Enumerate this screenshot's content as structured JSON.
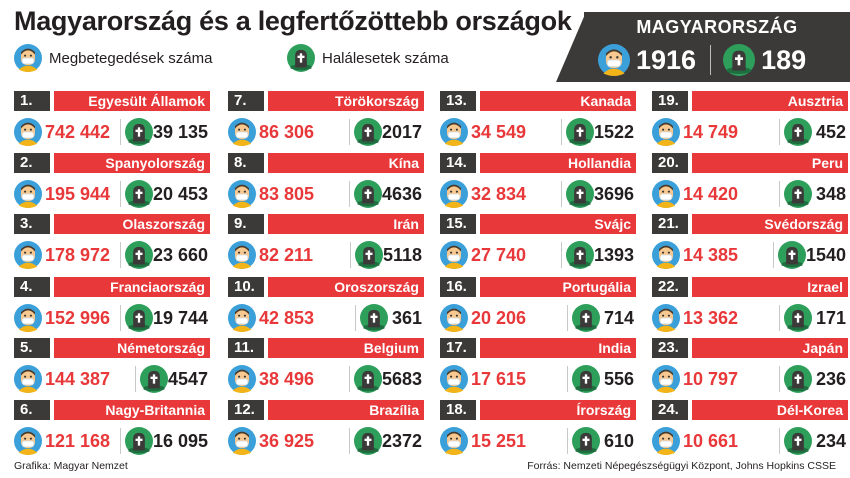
{
  "title": "Magyarország és a legfertőzöttebb országok",
  "legend": {
    "cases_label": "Megbetegedések száma",
    "deaths_label": "Halálesetek száma"
  },
  "hungary": {
    "title": "MAGYARORSZÁG",
    "cases": "1916",
    "deaths": "189"
  },
  "icons": {
    "cases": "sick-person-icon",
    "deaths": "grave-icon"
  },
  "colors": {
    "accent_red": "#e8383a",
    "dark": "#3b3a39",
    "skin": "#f7c88f",
    "blue": "#3ba0d9",
    "green": "#2e9e5b"
  },
  "countries": [
    {
      "rank": "1.",
      "name": "Egyesült Államok",
      "cases": "742 442",
      "deaths": "39 135"
    },
    {
      "rank": "2.",
      "name": "Spanyolország",
      "cases": "195 944",
      "deaths": "20 453"
    },
    {
      "rank": "3.",
      "name": "Olaszország",
      "cases": "178 972",
      "deaths": "23 660"
    },
    {
      "rank": "4.",
      "name": "Franciaország",
      "cases": "152 996",
      "deaths": "19 744"
    },
    {
      "rank": "5.",
      "name": "Németország",
      "cases": "144 387",
      "deaths": "4547"
    },
    {
      "rank": "6.",
      "name": "Nagy-Britannia",
      "cases": "121 168",
      "deaths": "16 095"
    },
    {
      "rank": "7.",
      "name": "Törökország",
      "cases": "86 306",
      "deaths": "2017"
    },
    {
      "rank": "8.",
      "name": "Kína",
      "cases": "83 805",
      "deaths": "4636"
    },
    {
      "rank": "9.",
      "name": "Irán",
      "cases": "82 211",
      "deaths": "5118"
    },
    {
      "rank": "10.",
      "name": "Oroszország",
      "cases": "42 853",
      "deaths": "361"
    },
    {
      "rank": "11.",
      "name": "Belgium",
      "cases": "38 496",
      "deaths": "5683"
    },
    {
      "rank": "12.",
      "name": "Brazília",
      "cases": "36 925",
      "deaths": "2372"
    },
    {
      "rank": "13.",
      "name": "Kanada",
      "cases": "34 549",
      "deaths": "1522"
    },
    {
      "rank": "14.",
      "name": "Hollandia",
      "cases": "32 834",
      "deaths": "3696"
    },
    {
      "rank": "15.",
      "name": "Svájc",
      "cases": "27 740",
      "deaths": "1393"
    },
    {
      "rank": "16.",
      "name": "Portugália",
      "cases": "20 206",
      "deaths": "714"
    },
    {
      "rank": "17.",
      "name": "India",
      "cases": "17 615",
      "deaths": "556"
    },
    {
      "rank": "18.",
      "name": "Írország",
      "cases": "15 251",
      "deaths": "610"
    },
    {
      "rank": "19.",
      "name": "Ausztria",
      "cases": "14 749",
      "deaths": "452"
    },
    {
      "rank": "20.",
      "name": "Peru",
      "cases": "14 420",
      "deaths": "348"
    },
    {
      "rank": "21.",
      "name": "Svédország",
      "cases": "14 385",
      "deaths": "1540"
    },
    {
      "rank": "22.",
      "name": "Izrael",
      "cases": "13 362",
      "deaths": "171"
    },
    {
      "rank": "23.",
      "name": "Japán",
      "cases": "10 797",
      "deaths": "236"
    },
    {
      "rank": "24.",
      "name": "Dél-Korea",
      "cases": "10 661",
      "deaths": "234"
    }
  ],
  "footer": {
    "credit": "Grafika: Magyar Nemzet",
    "source": "Forrás: Nemzeti Népegészségügyi Központ, Johns Hopkins CSSE"
  }
}
